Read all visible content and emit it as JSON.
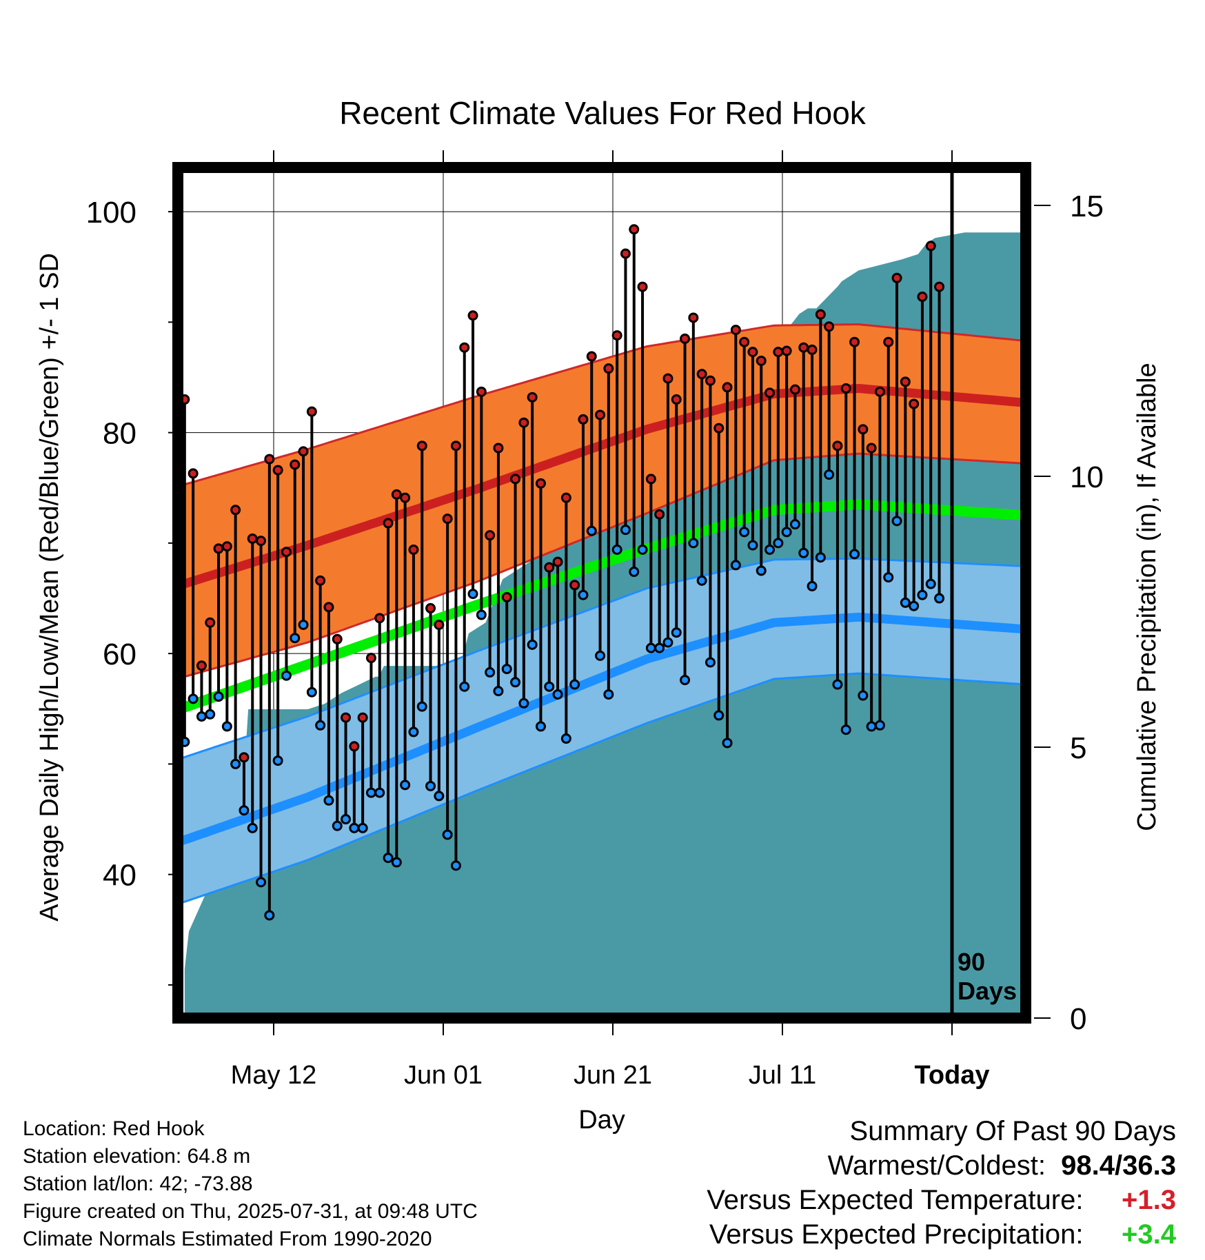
{
  "chart_data": {
    "type": "line",
    "title": "Recent Climate Values For Red Hook",
    "xlabel": "Day",
    "ylabel": "Average Daily High/Low/Mean (Red/Blue/Green) +/- 1 SD",
    "y2label": "Cumulative Precipitation (in), If Available",
    "ylim": [
      27,
      104
    ],
    "y_ticks": [
      100,
      80,
      60,
      40
    ],
    "y2lim": [
      0,
      15.7
    ],
    "y2_ticks": [
      15,
      10,
      5,
      0
    ],
    "xlim": [
      -5.3,
      94.7
    ],
    "x_ticks": [
      {
        "day": 6,
        "label": "May 12"
      },
      {
        "day": 26,
        "label": "Jun 01"
      },
      {
        "day": 46,
        "label": "Jun 21"
      },
      {
        "day": 66,
        "label": "Jul 11"
      },
      {
        "day": 86,
        "label": "Today"
      }
    ],
    "today_day": 86,
    "today_annotation": "90\nDays",
    "grid": true,
    "series": [
      {
        "name": "High",
        "color": "#cc2020",
        "marker_fill": "#cc2020",
        "values": [
          83.0,
          76.3,
          58.9,
          62.8,
          69.5,
          69.7,
          73.0,
          50.6,
          70.4,
          70.2,
          77.6,
          76.6,
          69.2,
          77.1,
          78.3,
          81.9,
          66.6,
          64.2,
          61.3,
          54.2,
          51.6,
          54.2,
          59.6,
          63.2,
          71.8,
          74.4,
          74.1,
          69.4,
          78.8,
          64.1,
          62.6,
          72.2,
          78.8,
          87.7,
          90.6,
          83.7,
          70.7,
          78.6,
          65.1,
          75.8,
          80.9,
          83.2,
          75.4,
          67.8,
          68.3,
          74.1,
          66.2,
          81.2,
          86.9,
          81.6,
          85.8,
          88.8,
          96.2,
          98.4,
          93.2,
          75.8,
          72.6,
          84.9,
          83.0,
          88.5,
          90.4,
          85.3,
          84.7,
          80.4,
          84.1,
          89.3,
          88.2,
          87.3,
          86.5,
          83.6,
          87.3,
          87.4,
          83.9,
          87.7,
          87.5,
          90.7,
          89.6,
          78.8,
          84.0,
          88.2,
          80.3,
          78.6,
          83.7,
          88.2,
          94.0,
          84.6,
          82.6,
          92.3,
          96.9,
          93.2
        ]
      },
      {
        "name": "Low",
        "color": "#1e8fff",
        "marker_fill": "#1e8fff",
        "values": [
          52.0,
          55.9,
          54.3,
          54.5,
          56.1,
          53.4,
          50.0,
          45.8,
          44.2,
          39.3,
          36.3,
          50.3,
          58.0,
          61.4,
          62.6,
          56.5,
          53.5,
          46.7,
          44.4,
          45.0,
          44.2,
          44.2,
          47.4,
          47.4,
          41.5,
          41.1,
          48.1,
          52.9,
          55.2,
          48.0,
          47.1,
          43.6,
          40.8,
          57.0,
          65.4,
          63.5,
          58.3,
          56.6,
          58.6,
          57.4,
          55.5,
          60.8,
          53.4,
          57.0,
          56.3,
          52.3,
          57.2,
          65.3,
          71.1,
          59.8,
          56.3,
          69.4,
          71.2,
          67.4,
          69.4,
          60.5,
          60.5,
          61.0,
          61.9,
          57.6,
          70.0,
          66.6,
          59.2,
          54.4,
          51.9,
          68.0,
          71.0,
          69.8,
          67.5,
          69.4,
          70.0,
          71.0,
          71.7,
          69.1,
          66.1,
          68.7,
          76.2,
          57.2,
          53.1,
          69.0,
          56.2,
          53.4,
          53.5,
          66.9,
          72.0,
          64.6,
          64.3,
          65.3,
          66.3,
          65.0
        ]
      },
      {
        "name": "Mean",
        "color": "#00ee00",
        "x": [
          -5,
          10,
          30,
          50,
          65,
          75,
          94.7
        ],
        "values": [
          55.0,
          59.0,
          64.4,
          69.5,
          73.0,
          73.5,
          72.5
        ]
      },
      {
        "name": "Normal High",
        "color": "#cc2020",
        "x": [
          -5,
          10,
          30,
          50,
          65,
          75,
          94.7
        ],
        "values": [
          66.2,
          69.8,
          74.9,
          80.3,
          83.5,
          84.0,
          82.7
        ]
      },
      {
        "name": "Normal High +/- 1 SD",
        "color": "#f47b2d",
        "x": [
          -5,
          10,
          30,
          50,
          65,
          75,
          94.7
        ],
        "upper": [
          75.2,
          78.5,
          83.3,
          87.8,
          89.7,
          89.8,
          88.3
        ],
        "lower": [
          57.8,
          61.0,
          66.5,
          72.7,
          77.5,
          78.1,
          77.2
        ]
      },
      {
        "name": "Normal Low",
        "color": "#1e8fff",
        "x": [
          -5,
          10,
          30,
          50,
          65,
          75,
          94.7
        ],
        "values": [
          43.0,
          47.0,
          53.3,
          59.5,
          62.8,
          63.3,
          62.2
        ]
      },
      {
        "name": "Normal Low +/- 1 SD",
        "color": "#7fbde6",
        "x": [
          -5,
          10,
          30,
          50,
          65,
          75,
          94.7
        ],
        "upper": [
          50.5,
          54.3,
          60.2,
          65.9,
          68.5,
          68.6,
          67.9
        ],
        "lower": [
          37.4,
          41.3,
          47.6,
          53.7,
          57.7,
          58.2,
          57.2
        ]
      },
      {
        "name": "Cumulative Precipitation",
        "color": "#4a9aa5",
        "axis": "y2",
        "x": [
          -4.5,
          -4,
          -2,
          -1,
          0,
          1,
          1.2,
          2,
          3,
          10,
          12,
          14,
          18,
          18.4,
          19,
          28,
          29,
          31,
          33,
          35,
          40,
          44,
          45,
          46,
          47,
          48,
          55,
          55.5,
          56,
          60,
          62,
          63,
          64,
          65,
          67,
          68,
          69,
          70,
          72.5,
          73,
          75,
          80,
          82,
          83,
          84,
          87.5,
          94.7
        ],
        "values": [
          0.9,
          1.6,
          2.3,
          2.6,
          2.9,
          3.1,
          3.2,
          3.2,
          5.7,
          5.7,
          5.8,
          6.0,
          6.3,
          6.3,
          6.5,
          6.5,
          7.1,
          7.3,
          8.1,
          8.3,
          8.8,
          9.0,
          9.0,
          9.9,
          10.2,
          10.4,
          10.5,
          10.7,
          11.2,
          11.5,
          11.5,
          11.5,
          12.0,
          12.3,
          12.8,
          13.0,
          13.1,
          13.1,
          13.5,
          13.6,
          13.8,
          14.0,
          14.1,
          14.3,
          14.4,
          14.5,
          14.5
        ]
      }
    ]
  },
  "footer": {
    "location": "Location: Red Hook",
    "elevation": "Station elevation: 64.8 m",
    "latlon": "Station lat/lon: 42; -73.88",
    "created": "Figure created on Thu, 2025-07-31, at 09:48 UTC",
    "normals": "Climate Normals Estimated From 1990-2020"
  },
  "summary": {
    "heading": "Summary Of Past 90 Days",
    "warm_cold_label": "Warmest/Coldest:",
    "warm_cold_value": "98.4/36.3",
    "temp_label": "Versus Expected Temperature:",
    "temp_value": "+1.3",
    "precip_label": "Versus Expected Precipitation:",
    "precip_value": "+3.4"
  }
}
